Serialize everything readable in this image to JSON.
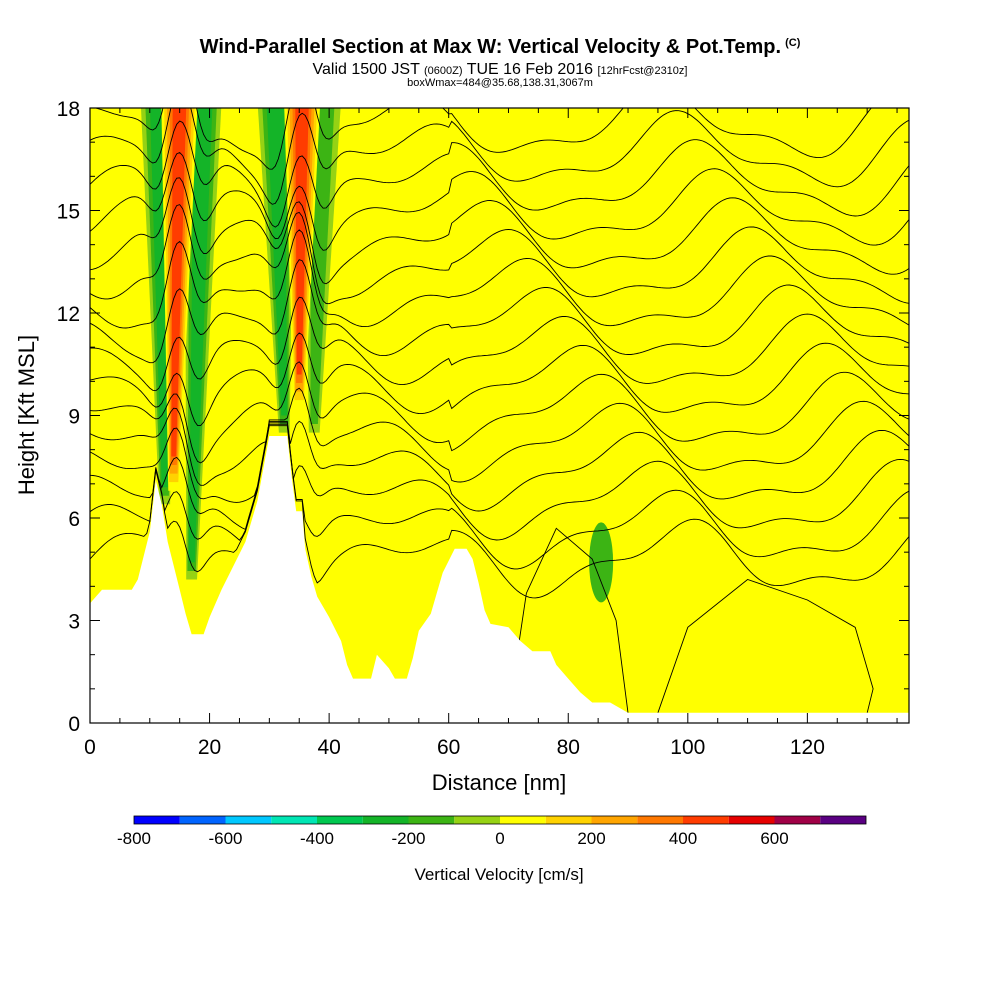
{
  "header": {
    "title": "Wind-Parallel Section at Max W: Vertical Velocity & Pot.Temp.",
    "copyright": "(C)",
    "valid_prefix": "Valid 1500 JST",
    "valid_utc": "(0600Z)",
    "valid_date": "TUE 16 Feb 2016",
    "forecast_info": "[12hrFcst@2310z]",
    "box_info": "boxWmax=484@35.68,138.31,3067m"
  },
  "chart_data": {
    "type": "heatmap",
    "title": "Wind-Parallel Section at Max W: Vertical Velocity & Pot.Temp.",
    "xlabel": "Distance [nm]",
    "ylabel": "Height [Kft MSL]",
    "xlim": [
      0,
      137
    ],
    "ylim": [
      0,
      18
    ],
    "x_ticks": [
      0,
      20,
      40,
      60,
      80,
      100,
      120
    ],
    "y_ticks": [
      0,
      3,
      6,
      9,
      12,
      15,
      18
    ],
    "colorbar": {
      "label": "Vertical Velocity [cm/s]",
      "ticks": [
        -800,
        -600,
        -400,
        -200,
        0,
        200,
        400,
        600
      ],
      "levels": [
        -800,
        -700,
        -600,
        -500,
        -400,
        -300,
        -200,
        -100,
        0,
        100,
        200,
        300,
        400,
        500,
        600,
        700
      ],
      "colors": [
        "#0000ff",
        "#0064ff",
        "#00c8ff",
        "#00e6b4",
        "#00c850",
        "#14b428",
        "#3cb414",
        "#96d214",
        "#ffff00",
        "#ffd200",
        "#ffa500",
        "#ff7800",
        "#ff3c00",
        "#e60000",
        "#a00046",
        "#5a0082"
      ]
    },
    "terrain_profile": [
      [
        0,
        3.5
      ],
      [
        2,
        3.9
      ],
      [
        7,
        3.9
      ],
      [
        8,
        4.2
      ],
      [
        10,
        5.6
      ],
      [
        11,
        7.1
      ],
      [
        12,
        6.4
      ],
      [
        13,
        5.3
      ],
      [
        14,
        4.6
      ],
      [
        15,
        3.9
      ],
      [
        16,
        3.2
      ],
      [
        17,
        2.6
      ],
      [
        19,
        2.6
      ],
      [
        20,
        3.1
      ],
      [
        22,
        3.9
      ],
      [
        24,
        4.6
      ],
      [
        26,
        5.3
      ],
      [
        28,
        6.5
      ],
      [
        30,
        8.4
      ],
      [
        33,
        8.4
      ],
      [
        33.8,
        7.1
      ],
      [
        34.5,
        6.2
      ],
      [
        35.5,
        6.2
      ],
      [
        36,
        5.1
      ],
      [
        37,
        4.3
      ],
      [
        38,
        3.7
      ],
      [
        40,
        3.1
      ],
      [
        42,
        2.4
      ],
      [
        43,
        1.7
      ],
      [
        44,
        1.3
      ],
      [
        47,
        1.3
      ],
      [
        48,
        2.0
      ],
      [
        50,
        1.6
      ],
      [
        51,
        1.3
      ],
      [
        53,
        1.3
      ],
      [
        54,
        1.9
      ],
      [
        55,
        2.7
      ],
      [
        57,
        3.2
      ],
      [
        59,
        4.4
      ],
      [
        61,
        5.1
      ],
      [
        63,
        5.1
      ],
      [
        64,
        4.8
      ],
      [
        65,
        4.1
      ],
      [
        66,
        3.3
      ],
      [
        67,
        2.9
      ],
      [
        70,
        2.8
      ],
      [
        72,
        2.4
      ],
      [
        74,
        2.1
      ],
      [
        77,
        2.1
      ],
      [
        78,
        1.7
      ],
      [
        80,
        1.3
      ],
      [
        82,
        0.9
      ],
      [
        84,
        0.6
      ],
      [
        87,
        0.6
      ],
      [
        90,
        0.3
      ],
      [
        95,
        0.3
      ],
      [
        137,
        0.3
      ]
    ],
    "updraft_bands": [
      {
        "top_x": 15,
        "top_y": 18,
        "base_x": 14,
        "base_y": 6.8,
        "peak_cm_s": 484
      },
      {
        "top_x": 35.5,
        "top_y": 18,
        "base_x": 35,
        "base_y": 9.2,
        "peak_cm_s": 450
      }
    ],
    "downdraft_bands": [
      {
        "top_x": 11.5,
        "top_y": 18,
        "base_x": 12.5,
        "base_y": 6.4,
        "min_cm_s": -250
      },
      {
        "top_x": 19,
        "top_y": 18,
        "base_x": 17,
        "base_y": 4.2,
        "min_cm_s": -250
      },
      {
        "top_x": 31,
        "top_y": 18,
        "base_x": 32.5,
        "base_y": 8.5,
        "min_cm_s": -250
      },
      {
        "top_x": 39,
        "top_y": 18,
        "base_x": 37.5,
        "base_y": 8.5,
        "min_cm_s": -220
      }
    ],
    "downdraft_spots": [
      {
        "x": 85.5,
        "y": 4.7,
        "min_cm_s": -150
      }
    ]
  }
}
